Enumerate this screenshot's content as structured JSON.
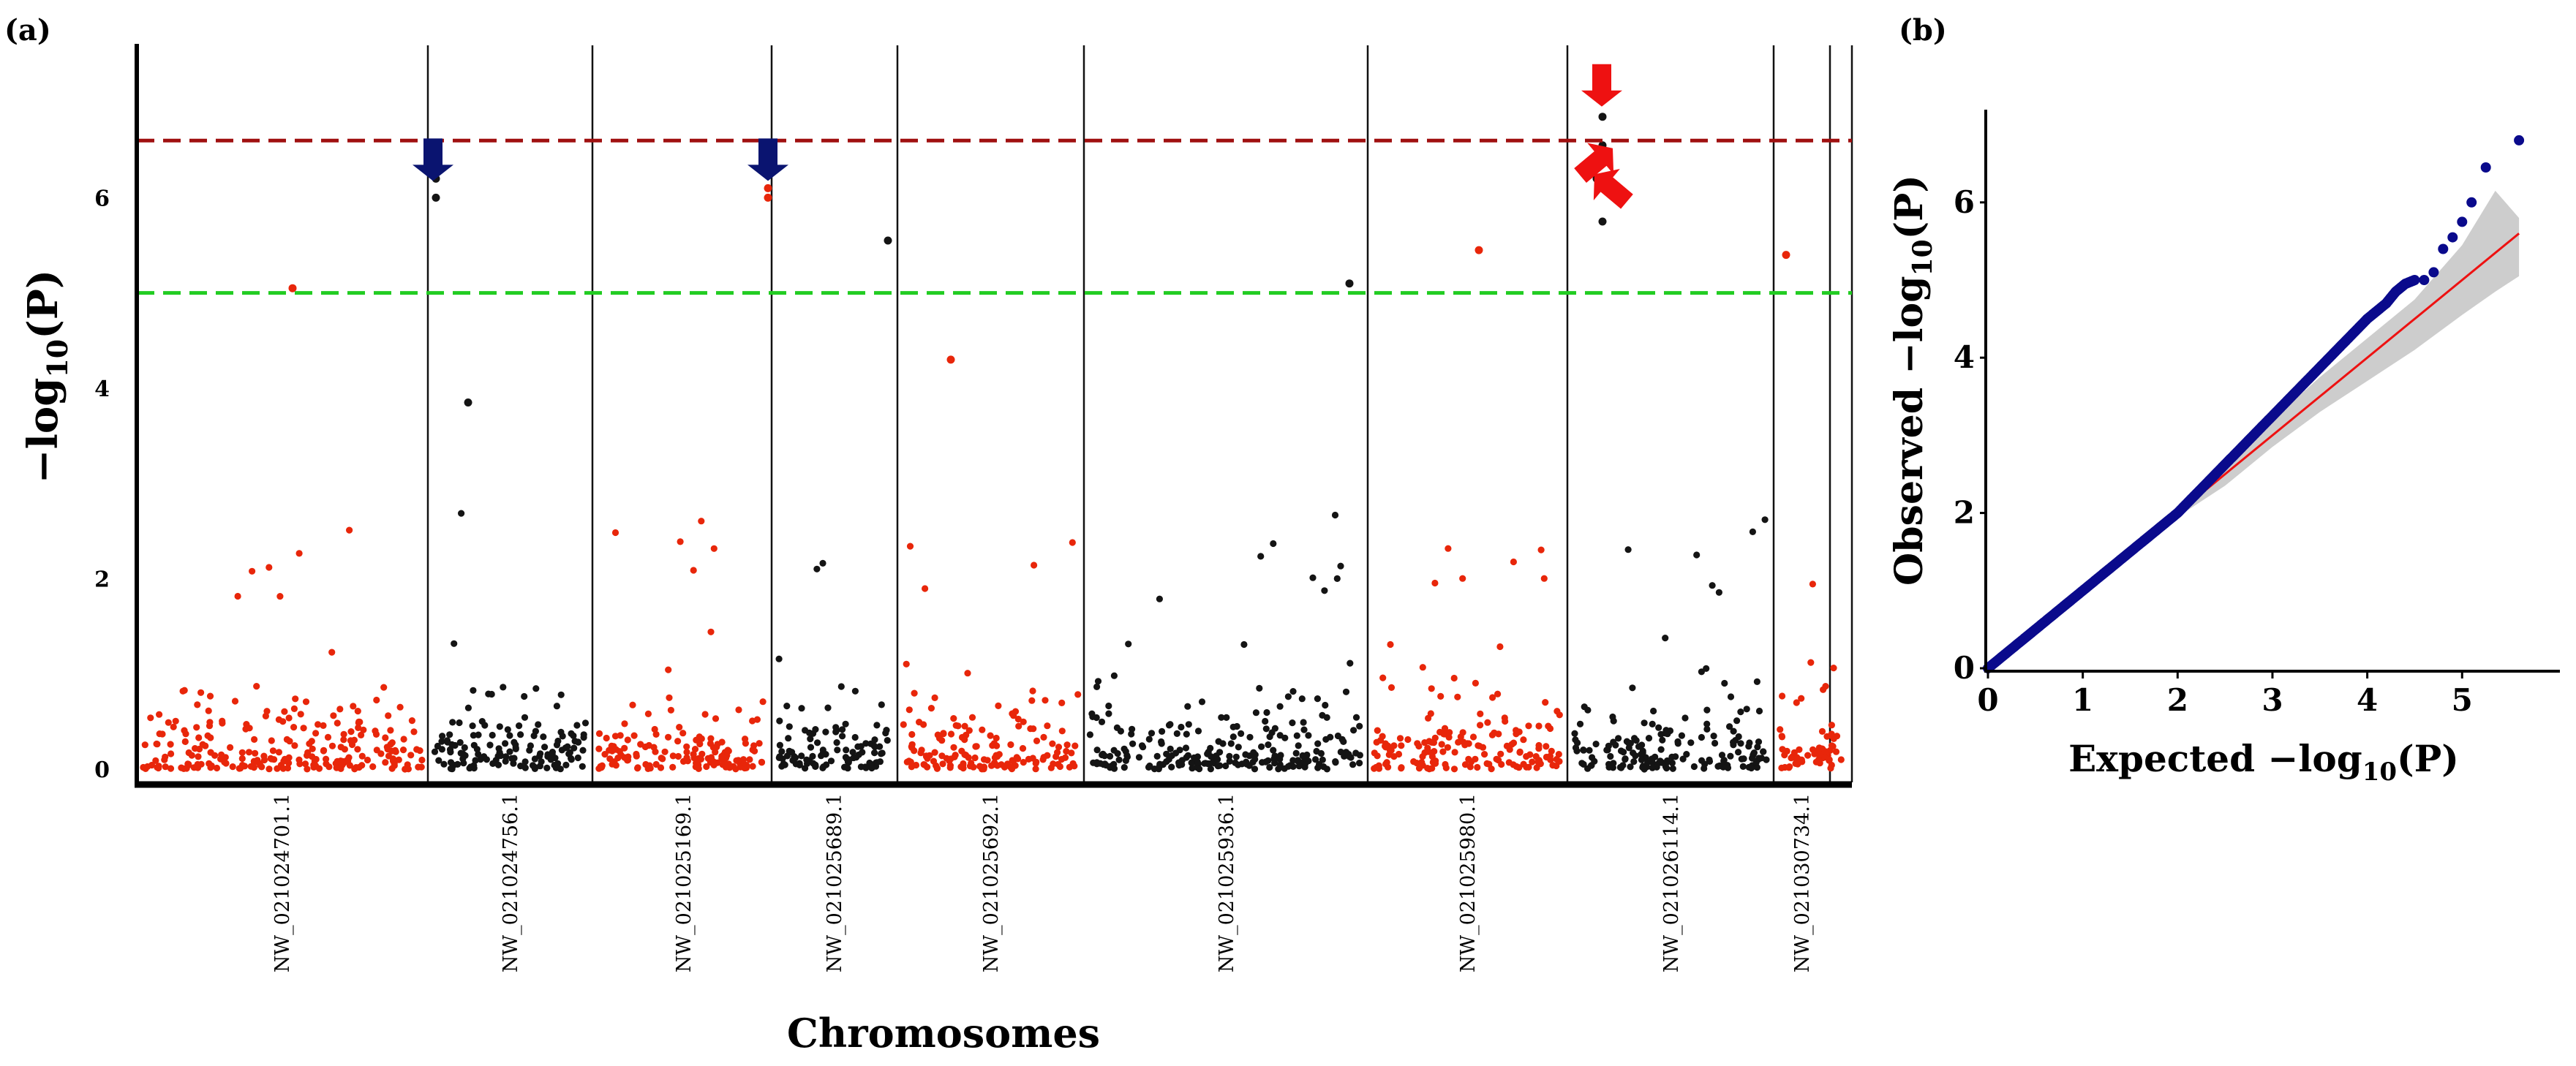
{
  "figure": {
    "panel_a_label": "(a)",
    "panel_b_label": "(b)"
  },
  "colors": {
    "red_points": "#e8260a",
    "black_points": "#141414",
    "blue_points": "#0a0a8c",
    "sig_line": "#a01010",
    "sugg_line": "#22cc22",
    "blue_arrow": "#0a1470",
    "red_arrow": "#ee1111",
    "qq_line": "#ee1111",
    "qq_band": "#c8c8c8"
  },
  "chart_data": [
    {
      "type": "scatter",
      "subtype": "manhattan",
      "title": "",
      "xlabel": "Chromosomes",
      "ylabel_main": "−log",
      "ylabel_sub": "10",
      "ylabel_tail": "(P)",
      "ylim": [
        0,
        7.6
      ],
      "yticks": [
        0,
        2,
        4,
        6
      ],
      "significance_threshold": 6.6,
      "suggestive_threshold": 5.0,
      "chromosomes": [
        "NW_021024701.1",
        "NW_021024756.1",
        "NW_021025169.1",
        "NW_021025689.1",
        "NW_021025692.1",
        "NW_021025936.1",
        "NW_021025980.1",
        "NW_021026114.1",
        "NW_021030734.1"
      ],
      "chromosome_colors": [
        "red",
        "black",
        "red",
        "black",
        "red",
        "black",
        "red",
        "black",
        "red"
      ],
      "top_snps": [
        {
          "chromosome": "NW_021024701.1",
          "value": 5.05
        },
        {
          "chromosome": "NW_021024756.1",
          "value": 6.2
        },
        {
          "chromosome": "NW_021024756.1",
          "value": 6.0
        },
        {
          "chromosome": "NW_021024756.1",
          "value": 3.85
        },
        {
          "chromosome": "NW_021025169.1",
          "value": 6.1
        },
        {
          "chromosome": "NW_021025169.1",
          "value": 6.0
        },
        {
          "chromosome": "NW_021025689.1",
          "value": 5.55
        },
        {
          "chromosome": "NW_021025692.1",
          "value": 4.3
        },
        {
          "chromosome": "NW_021025936.1",
          "value": 5.1
        },
        {
          "chromosome": "NW_021025980.1",
          "value": 5.45
        },
        {
          "chromosome": "NW_021026114.1",
          "value": 6.85
        },
        {
          "chromosome": "NW_021026114.1",
          "value": 6.55
        },
        {
          "chromosome": "NW_021026114.1",
          "value": 6.2
        },
        {
          "chromosome": "NW_021026114.1",
          "value": 5.75
        },
        {
          "chromosome": "NW_021030734.1",
          "value": 5.4
        }
      ],
      "annotations": [
        {
          "type": "arrow",
          "color": "blue",
          "chromosome": "NW_021024756.1",
          "points_to": 6.1
        },
        {
          "type": "arrow",
          "color": "blue",
          "chromosome": "NW_021025169.1",
          "points_to": 6.1
        },
        {
          "type": "arrow",
          "color": "red",
          "chromosome": "NW_021026114.1",
          "points_to": 6.85
        },
        {
          "type": "arrow",
          "color": "red",
          "chromosome": "NW_021026114.1",
          "points_to": 6.55
        },
        {
          "type": "arrow",
          "color": "red",
          "chromosome": "NW_021026114.1",
          "points_to": 6.2
        }
      ]
    },
    {
      "type": "scatter",
      "subtype": "qq",
      "title": "",
      "xlabel_main": "Expected −log",
      "xlabel_sub": "10",
      "xlabel_tail": "(P)",
      "ylabel_main": "Observed −log",
      "ylabel_sub": "10",
      "ylabel_tail": "(P)",
      "xlim": [
        0,
        5.8
      ],
      "ylim": [
        0,
        7.1
      ],
      "xticks": [
        0,
        1,
        2,
        3,
        4,
        5
      ],
      "yticks": [
        0,
        2,
        4,
        6
      ],
      "expected_line": {
        "x": [
          0,
          5.6
        ],
        "y": [
          0,
          5.6
        ]
      },
      "confidence_band": {
        "x": [
          2.0,
          2.5,
          3.0,
          3.5,
          4.0,
          4.5,
          5.0,
          5.35,
          5.6
        ],
        "lower": [
          1.95,
          2.35,
          2.85,
          3.3,
          3.7,
          4.1,
          4.55,
          4.85,
          5.05
        ],
        "upper": [
          2.05,
          2.65,
          3.2,
          3.75,
          4.25,
          4.75,
          5.45,
          6.15,
          5.8
        ]
      },
      "observed_points": {
        "x": [
          0.0,
          0.2,
          0.4,
          0.6,
          0.8,
          1.0,
          1.2,
          1.4,
          1.6,
          1.8,
          2.0,
          2.2,
          2.4,
          2.6,
          2.8,
          3.0,
          3.2,
          3.4,
          3.6,
          3.8,
          4.0,
          4.2,
          4.3,
          4.4,
          4.5,
          4.6,
          4.7,
          4.8,
          4.9,
          5.0,
          5.1,
          5.25,
          5.6
        ],
        "y": [
          0.0,
          0.2,
          0.4,
          0.6,
          0.8,
          1.0,
          1.2,
          1.4,
          1.6,
          1.8,
          2.0,
          2.25,
          2.5,
          2.75,
          3.0,
          3.25,
          3.5,
          3.75,
          4.0,
          4.25,
          4.5,
          4.7,
          4.85,
          4.95,
          5.0,
          5.0,
          5.1,
          5.4,
          5.55,
          5.75,
          6.0,
          6.45,
          6.8
        ]
      }
    }
  ]
}
